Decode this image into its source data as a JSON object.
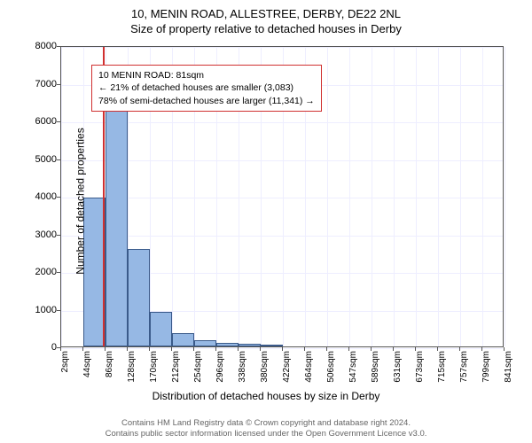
{
  "title": "10, MENIN ROAD, ALLESTREE, DERBY, DE22 2NL",
  "subtitle": "Size of property relative to detached houses in Derby",
  "chart": {
    "type": "histogram",
    "ylabel": "Number of detached properties",
    "xlabel": "Distribution of detached houses by size in Derby",
    "ylim": [
      0,
      8000
    ],
    "ytick_step": 1000,
    "yticks": [
      0,
      1000,
      2000,
      3000,
      4000,
      5000,
      6000,
      7000,
      8000
    ],
    "xticks": [
      "2sqm",
      "44sqm",
      "86sqm",
      "128sqm",
      "170sqm",
      "212sqm",
      "254sqm",
      "296sqm",
      "338sqm",
      "380sqm",
      "422sqm",
      "464sqm",
      "506sqm",
      "547sqm",
      "589sqm",
      "631sqm",
      "673sqm",
      "715sqm",
      "757sqm",
      "799sqm",
      "841sqm"
    ],
    "xtick_positions": [
      2,
      44,
      86,
      128,
      170,
      212,
      254,
      296,
      338,
      380,
      422,
      464,
      506,
      547,
      589,
      631,
      673,
      715,
      757,
      799,
      841
    ],
    "x_range": [
      2,
      841
    ],
    "bars": [
      {
        "x": 44,
        "width": 42,
        "value": 3950
      },
      {
        "x": 86,
        "width": 42,
        "value": 6780
      },
      {
        "x": 128,
        "width": 42,
        "value": 2580
      },
      {
        "x": 170,
        "width": 42,
        "value": 920
      },
      {
        "x": 212,
        "width": 42,
        "value": 350
      },
      {
        "x": 254,
        "width": 42,
        "value": 160
      },
      {
        "x": 296,
        "width": 42,
        "value": 90
      },
      {
        "x": 338,
        "width": 42,
        "value": 60
      },
      {
        "x": 380,
        "width": 42,
        "value": 30
      }
    ],
    "bar_fill": "#96b8e4",
    "bar_stroke": "#3a5a8a",
    "grid_color": "#eef",
    "marker_x": 81,
    "marker_color": "#d03030",
    "background_color": "#ffffff"
  },
  "annotation": {
    "line1": "10 MENIN ROAD: 81sqm",
    "line2": "← 21% of detached houses are smaller (3,083)",
    "line3": "78% of semi-detached houses are larger (11,341) →",
    "border_color": "#d03030"
  },
  "footer": {
    "line1": "Contains HM Land Registry data © Crown copyright and database right 2024.",
    "line2": "Contains public sector information licensed under the Open Government Licence v3.0."
  }
}
